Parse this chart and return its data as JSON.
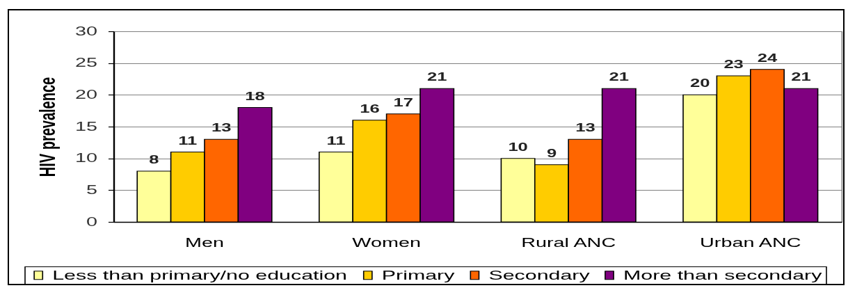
{
  "chart_data": {
    "type": "bar",
    "ylabel": "HIV prevalence",
    "categories": [
      "Men",
      "Women",
      "Rural ANC",
      "Urban ANC"
    ],
    "series": [
      {
        "name": "Less than primary/no education",
        "color": "#ffff99",
        "values": [
          8,
          11,
          10,
          20
        ]
      },
      {
        "name": "Primary",
        "color": "#ffcc00",
        "values": [
          11,
          16,
          9,
          23
        ]
      },
      {
        "name": "Secondary",
        "color": "#ff6600",
        "values": [
          13,
          17,
          13,
          24
        ]
      },
      {
        "name": "More than secondary",
        "color": "#800080",
        "values": [
          18,
          21,
          21,
          21
        ]
      }
    ],
    "ylim": [
      0,
      30
    ],
    "yticks": [
      0,
      5,
      10,
      15,
      20,
      25,
      30
    ],
    "grid": "y",
    "legend": "bottom",
    "data_labels": true
  }
}
